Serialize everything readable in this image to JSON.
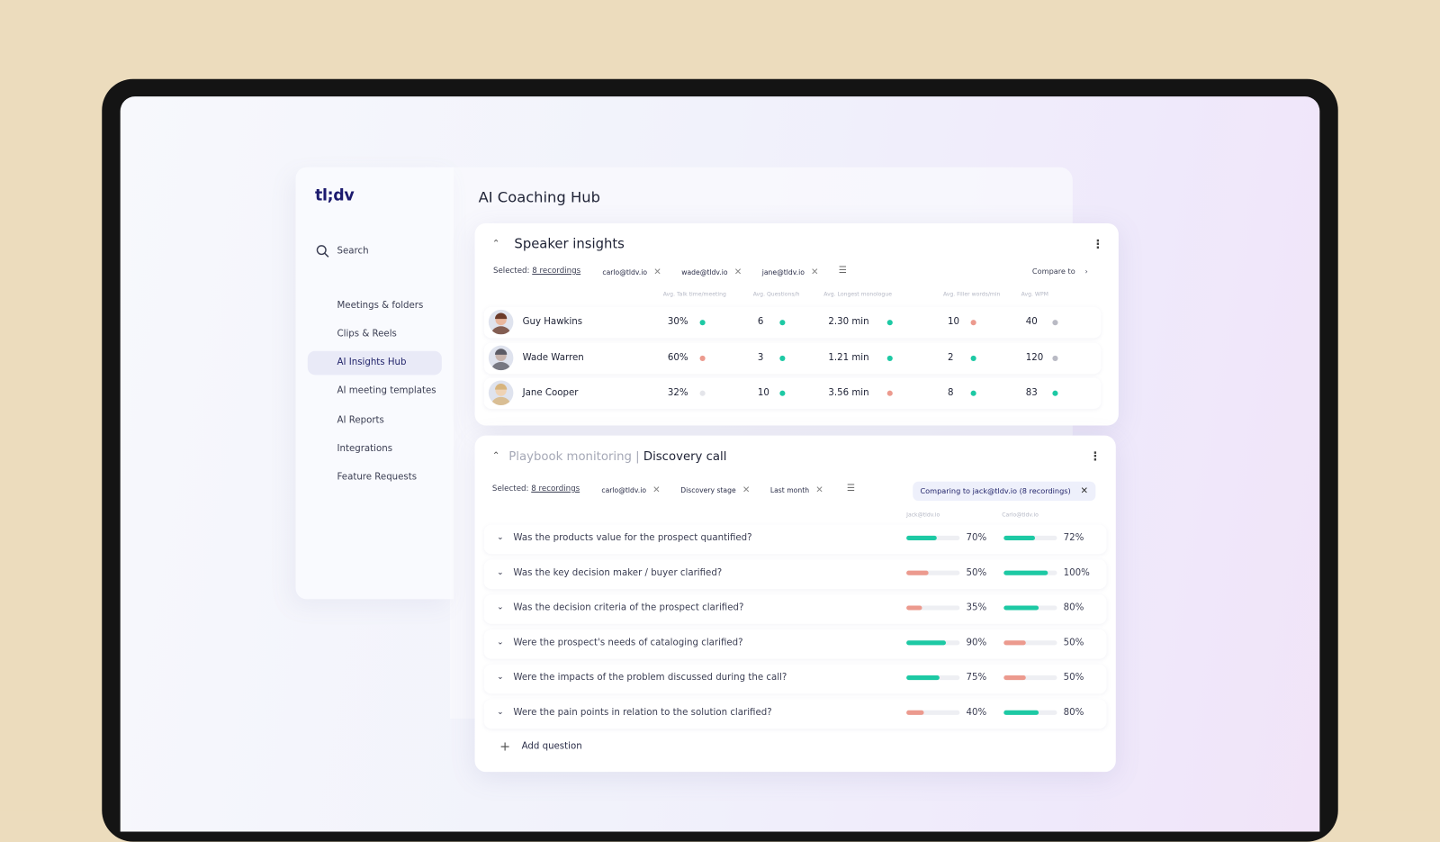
{
  "app": {
    "logo": "tl;dv",
    "page_title": "AI Coaching Hub"
  },
  "sidebar": {
    "search_label": "Search",
    "items": [
      {
        "label": "Meetings & folders",
        "icon": "video-camera-icon"
      },
      {
        "label": "Clips & Reels",
        "icon": "clapperboard-icon"
      },
      {
        "label": "AI Insights Hub",
        "icon": "insights-chart-icon",
        "active": true
      },
      {
        "label": "AI meeting templates",
        "icon": "template-tag-icon"
      },
      {
        "label": "AI Reports",
        "icon": "report-icon"
      },
      {
        "label": "Integrations",
        "icon": "grid-icon"
      },
      {
        "label": "Feature Requests",
        "icon": "lightbulb-icon"
      }
    ]
  },
  "speaker_insights": {
    "title": "Speaker insights",
    "selected_label": "Selected:",
    "recordings": "8 recordings",
    "chips": [
      "carlo@tldv.io",
      "wade@tldv.io",
      "jane@tldv.io"
    ],
    "compare_label": "Compare to",
    "columns": [
      "Avg. Talk time/meeting",
      "Avg. Questions/h",
      "Avg. Longest monologue",
      "Avg. Filler words/min",
      "Avg. WPM"
    ],
    "rows": [
      {
        "name": "Guy Hawkins",
        "values": [
          "30%",
          "6",
          "2.30 min",
          "10",
          "40"
        ],
        "status": [
          "good",
          "good",
          "good",
          "bad",
          "neutral"
        ]
      },
      {
        "name": "Wade Warren",
        "values": [
          "60%",
          "3",
          "1.21 min",
          "2",
          "120"
        ],
        "status": [
          "bad",
          "good",
          "good",
          "good",
          "neutral"
        ]
      },
      {
        "name": "Jane Cooper",
        "values": [
          "32%",
          "10",
          "3.56 min",
          "8",
          "83"
        ],
        "status": [
          "none",
          "good",
          "bad",
          "good",
          "good"
        ]
      }
    ]
  },
  "playbook": {
    "section": "Playbook monitoring",
    "separator": "|",
    "title": "Discovery call",
    "selected_label": "Selected:",
    "recordings": "8 recordings",
    "chips": [
      "carlo@tldv.io",
      "Discovery stage",
      "Last month"
    ],
    "comparing": "Comparing to jack@tldv.io (8 recordings)",
    "columns": [
      "Jack@tldv.io",
      "Carlo@tldv.io"
    ],
    "questions": [
      {
        "text": "Was the products value for the prospect quantified?",
        "a": 70,
        "b": 72
      },
      {
        "text": "Was the key decision maker / buyer clarified?",
        "a": 50,
        "b": 100
      },
      {
        "text": "Was the decision criteria of the prospect clarified?",
        "a": 35,
        "b": 80
      },
      {
        "text": "Were the prospect's needs of cataloging clarified?",
        "a": 90,
        "b": 50
      },
      {
        "text": "Were the impacts of the problem discussed during the call?",
        "a": 75,
        "b": 50
      },
      {
        "text": "Were the pain points in relation to the solution clarified?",
        "a": 40,
        "b": 80
      }
    ],
    "add_question": "Add question"
  },
  "colors": {
    "good": "#1dc9a4",
    "bad": "#ec9a8e",
    "neutral": "#b9bac4",
    "none": "#e4e5ea",
    "brand": "#1c1a6e"
  }
}
